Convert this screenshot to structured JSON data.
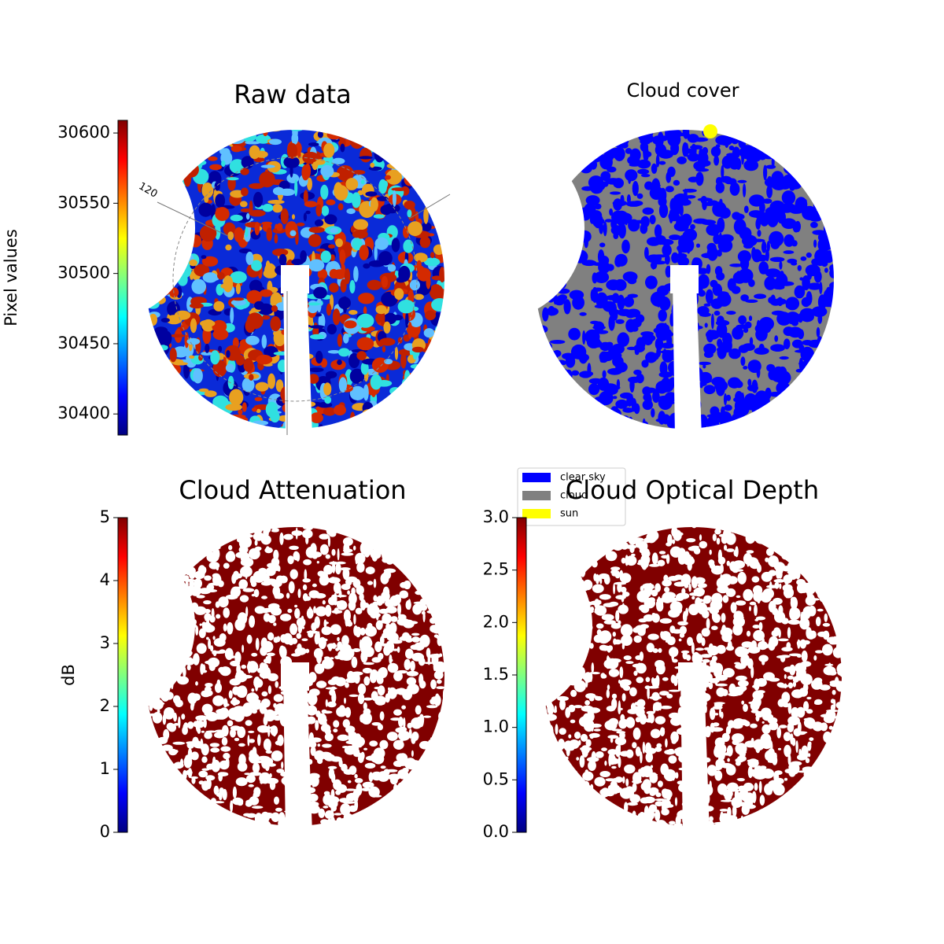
{
  "chart_data": [
    {
      "type": "image",
      "title": "Raw data",
      "colormap": "jet",
      "ylim": [
        30385,
        30609
      ],
      "yticks": [
        30400,
        30450,
        30500,
        30550,
        30600
      ],
      "ylabel": "Pixel values",
      "annotation": "120"
    },
    {
      "type": "classification",
      "title": "Cloud cover",
      "series": [
        {
          "name": "clear sky",
          "color": "#0000ff"
        },
        {
          "name": "cloud",
          "color": "#808080"
        },
        {
          "name": "sun",
          "color": "#ffff00"
        }
      ]
    },
    {
      "type": "image",
      "title": "Cloud Attenuation",
      "colormap": "jet",
      "ylim": [
        0,
        5
      ],
      "yticks": [
        0,
        1,
        2,
        3,
        4,
        5
      ],
      "ylabel": "dB"
    },
    {
      "type": "image",
      "title": "Cloud Optical Depth",
      "colormap": "jet",
      "ylim": [
        0,
        3
      ],
      "yticks": [
        {
          "value": 0,
          "label": "0.0"
        },
        0.5,
        {
          "value": 1,
          "label": "1.0"
        },
        1.5,
        {
          "value": 2,
          "label": "2.0"
        },
        2.5,
        {
          "value": 3,
          "label": "3.0"
        }
      ]
    }
  ]
}
